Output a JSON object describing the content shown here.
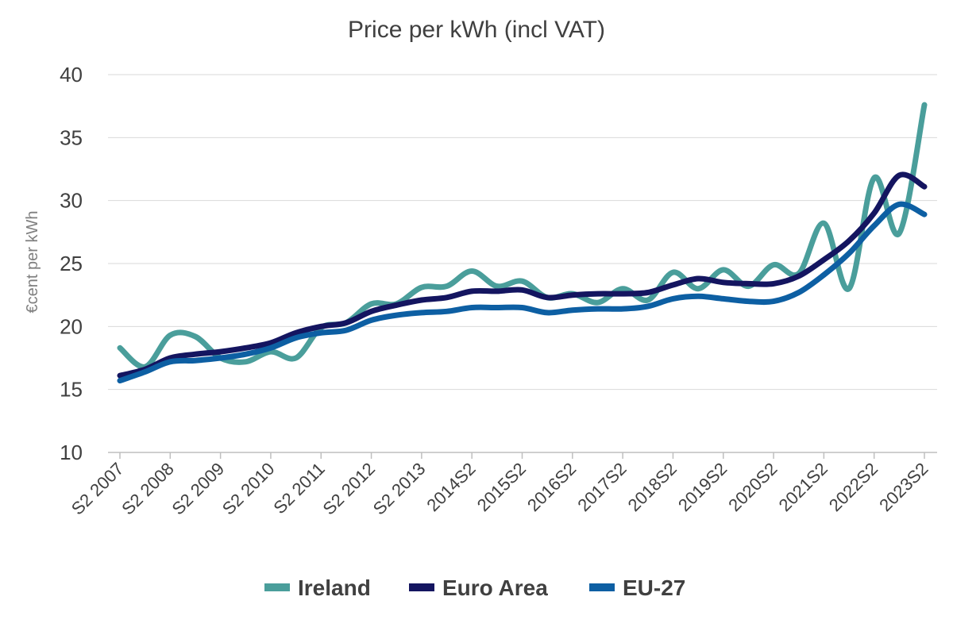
{
  "chart_data": {
    "type": "line",
    "title": "Price per kWh (incl VAT)",
    "xlabel": "",
    "ylabel": "€cent per kWh",
    "ylim": [
      10,
      40
    ],
    "yticks": [
      10,
      15,
      20,
      25,
      30,
      35,
      40
    ],
    "grid": true,
    "legend_position": "bottom",
    "categories": [
      "S2 2007",
      "S2 2008",
      "S2 2009",
      "S2 2010",
      "S2 2011",
      "S2 2012",
      "S2 2013",
      "2014S2",
      "2015S2",
      "2016S2",
      "2017S2",
      "2018S2",
      "2019S2",
      "2020S2",
      "2021S2",
      "2022S2",
      "2023S2"
    ],
    "x": [
      0,
      0.5,
      1,
      1.5,
      2,
      2.5,
      3,
      3.5,
      4,
      4.5,
      5,
      5.5,
      6,
      6.5,
      7,
      7.5,
      8,
      8.5,
      9,
      9.5,
      10,
      10.5,
      11,
      11.5,
      12,
      12.5,
      13,
      13.5,
      14,
      14.5,
      15,
      15.5,
      16
    ],
    "series": [
      {
        "name": "Ireland",
        "color": "#4a9e9b",
        "values": [
          18.3,
          16.8,
          19.3,
          19.2,
          17.5,
          17.2,
          18.0,
          17.5,
          19.9,
          20.3,
          21.8,
          21.8,
          23.1,
          23.2,
          24.4,
          23.2,
          23.6,
          22.3,
          22.6,
          21.9,
          23.0,
          22.1,
          24.3,
          23.0,
          24.5,
          23.2,
          24.9,
          24.2,
          28.2,
          23.0,
          31.8,
          27.4,
          37.6
        ]
      },
      {
        "name": "Euro Area",
        "color": "#141560",
        "values": [
          16.1,
          16.6,
          17.5,
          17.8,
          18.0,
          18.3,
          18.7,
          19.5,
          20.0,
          20.3,
          21.2,
          21.7,
          22.1,
          22.3,
          22.8,
          22.8,
          22.9,
          22.3,
          22.5,
          22.6,
          22.6,
          22.7,
          23.3,
          23.8,
          23.5,
          23.4,
          23.4,
          24.0,
          25.3,
          26.8,
          29.0,
          32.0,
          31.1
        ]
      },
      {
        "name": "EU-27",
        "color": "#0d5fa3",
        "values": [
          15.7,
          16.4,
          17.2,
          17.3,
          17.5,
          17.8,
          18.3,
          19.1,
          19.5,
          19.7,
          20.5,
          20.9,
          21.1,
          21.2,
          21.5,
          21.5,
          21.5,
          21.1,
          21.3,
          21.4,
          21.4,
          21.6,
          22.2,
          22.4,
          22.2,
          22.0,
          22.0,
          22.7,
          24.1,
          25.8,
          28.0,
          29.7,
          28.9
        ]
      }
    ]
  }
}
